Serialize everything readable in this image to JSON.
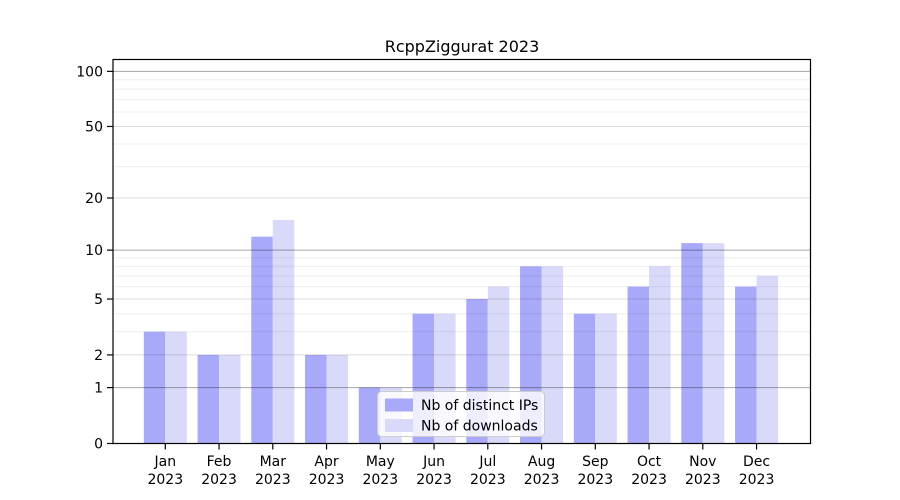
{
  "chart_data": {
    "type": "bar",
    "title": "RcppZiggurat 2023",
    "xlabel": "",
    "ylabel": "",
    "scale": "log1p",
    "grid": "on",
    "legend_position": "inside-bottom-center",
    "categories": [
      "Jan",
      "Feb",
      "Mar",
      "Apr",
      "May",
      "Jun",
      "Jul",
      "Aug",
      "Sep",
      "Oct",
      "Nov",
      "Dec"
    ],
    "category_sublabel": "2023",
    "series": [
      {
        "name": "Nb of distinct IPs",
        "color_key": "bar_distinct_ips",
        "values": [
          3,
          2,
          12,
          2,
          1,
          4,
          5,
          8,
          4,
          6,
          11,
          6
        ]
      },
      {
        "name": "Nb of downloads",
        "color_key": "bar_downloads",
        "values": [
          3,
          2,
          15,
          2,
          1,
          4,
          6,
          8,
          4,
          8,
          11,
          7
        ]
      }
    ],
    "y_ticks": [
      0,
      1,
      2,
      5,
      10,
      20,
      50,
      100
    ],
    "y_grid_decade": [
      1,
      10,
      100
    ],
    "y_grid_mid": [
      2,
      5,
      20,
      50
    ],
    "y_grid_minor": [
      3,
      4,
      6,
      7,
      8,
      9,
      30,
      40,
      60,
      70,
      80,
      90
    ],
    "ylim": [
      0,
      116
    ]
  },
  "colors": {
    "bar_distinct_ips": "#a9a9fa",
    "bar_downloads": "#d9d9fa",
    "grid_decade": "#a6a6a6",
    "grid_mid": "#dcdcdc",
    "grid_minor": "#eeeeee",
    "axis": "#000000",
    "legend_border": "#cccccc",
    "legend_background": "#ffffff"
  }
}
